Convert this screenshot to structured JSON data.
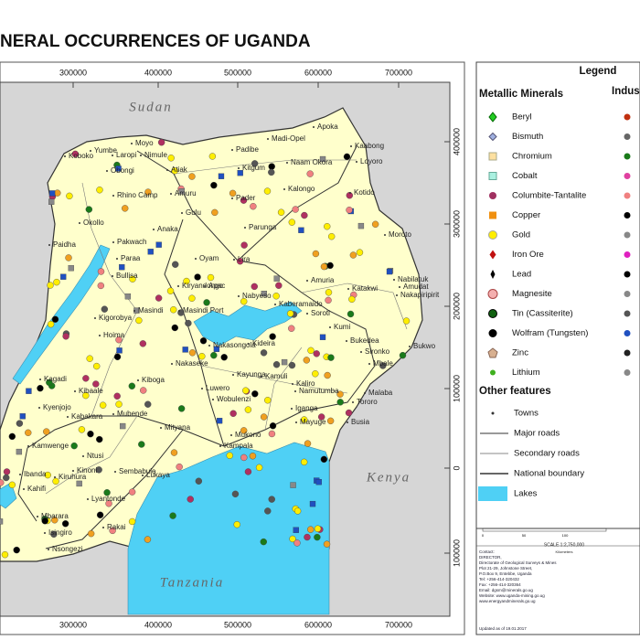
{
  "title": "NERAL OCCURRENCES OF UGANDA",
  "map": {
    "easting_ticks": [
      300000,
      400000,
      500000,
      600000,
      700000
    ],
    "northing_ticks": [
      400000,
      300000,
      200000,
      100000,
      0,
      100000
    ],
    "neighbours": [
      "Sudan",
      "Kenya",
      "Tanzania"
    ],
    "towns": [
      "Apoka",
      "Madi-Opel",
      "Kaabong",
      "Padibe",
      "Moyo",
      "Yumbe",
      "Laropi",
      "Nimule",
      "Koboko",
      "Obongi",
      "Atiak",
      "Kitgum",
      "Naam Okora",
      "Loyoro",
      "Kalongo",
      "Rhino Camp",
      "Amuru",
      "Pader",
      "Kotido",
      "Gulu",
      "Okollo",
      "Anaka",
      "Parunga",
      "Moroto",
      "Paidha",
      "Pakwach",
      "Paraa",
      "Oyam",
      "Lira",
      "Bullisa",
      "Kiryandongo",
      "Apac",
      "Amuria",
      "Katakwi",
      "Nabilatuk",
      "Amudat",
      "Nakapiripirit",
      "Nabyeso",
      "Kaberamaido",
      "Soroti",
      "Masindi",
      "Masindi Port",
      "Kigorobya",
      "Hoima",
      "Kumi",
      "Bukedea",
      "Sironko",
      "Bukwo",
      "Nakasongola",
      "Kideira",
      "Kagadi",
      "Kiboga",
      "Nakaseke",
      "Kayunga",
      "Kamuli",
      "Kaliro",
      "Mbale",
      "Luwero",
      "Wobulenzi",
      "Namutumba",
      "Kyenjojo",
      "Kibaale",
      "Kabakara",
      "Mubende",
      "Mityana",
      "Iganga",
      "Mayuge",
      "Tororo",
      "Kampala",
      "Mukono",
      "Kamwenge",
      "Ntusi",
      "Kiruhura",
      "Sembabule",
      "Lukaya",
      "Kinoni",
      "Ibanda",
      "Lyantonde",
      "Rakai",
      "Isingiro",
      "Mbarara",
      "Nsongezi",
      "Malaba",
      "Busia",
      "Kahifi"
    ]
  },
  "legend": {
    "title": "Legend",
    "metallic_heading": "Metallic Minerals",
    "industrial_heading": "Indus",
    "metallic": [
      "Beryl",
      "Bismuth",
      "Chromium",
      "Cobalt",
      "Columbite-Tantalite",
      "Copper",
      "Gold",
      "Iron Ore",
      "Lead",
      "Magnesite",
      "Tin (Cassiterite)",
      "Wolfram (Tungsten)",
      "Zinc",
      "Lithium"
    ],
    "other_heading": "Other features",
    "other": [
      "Towns",
      "Major roads",
      "Secondary roads",
      "National boundary",
      "Lakes"
    ],
    "scale": "SCALE 1:2,750,000",
    "scale_ticks": [
      0,
      50,
      100
    ],
    "scale_unit": "Kilometers",
    "contact": [
      "Contact:",
      "DIRECTOR,",
      "Directorate of Geological Surveys & Mines",
      "Plot 21-29, Johnstone Street,",
      "P.O.Box 9, Entebbe, Uganda",
      "Tel: +256-414-320432",
      "Fax: +256-414-320364",
      "Email: dgsm@minerals.go.ug",
      "Website: www.uganda-mining.go.ug",
      "www.energyandminerals.go.ug"
    ],
    "updated": "Updated as of 19.01.2017"
  }
}
